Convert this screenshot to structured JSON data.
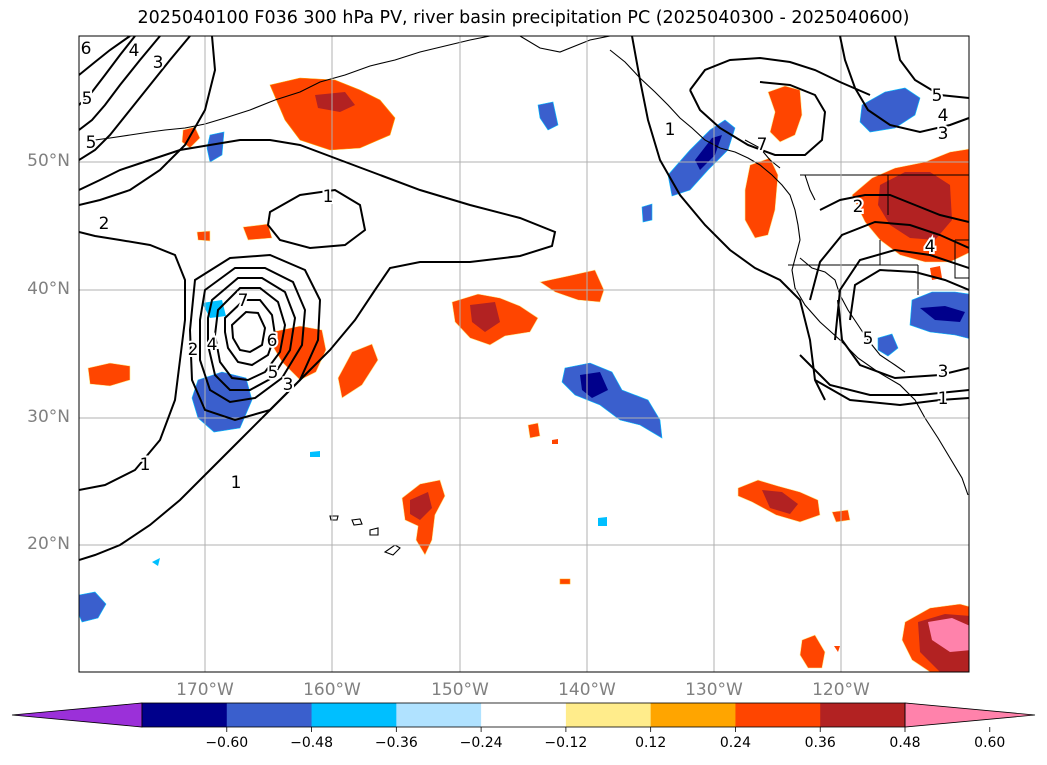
{
  "title": "2025040100 F036 300 hPa PV, river basin precipitation PC (2025040300 - 2025040600)",
  "lat_labels": [
    "50°N",
    "40°N",
    "30°N",
    "20°N"
  ],
  "lon_labels": [
    "170°W",
    "160°W",
    "150°W",
    "140°W",
    "130°W",
    "120°W"
  ],
  "colorbar": {
    "colors": [
      "#9b30d9",
      "#00008b",
      "#3a5fcd",
      "#00bfff",
      "#b0e2ff",
      "#ffffff",
      "#ffec8b",
      "#ffa500",
      "#ff4500",
      "#b22222",
      "#ff82ab"
    ],
    "ticks": [
      "−0.60",
      "−0.48",
      "−0.36",
      "−0.24",
      "−0.12",
      "0.12",
      "0.24",
      "0.36",
      "0.48",
      "0.60"
    ]
  },
  "contour_labels": [
    "1",
    "1",
    "1",
    "1",
    "1",
    "2",
    "2",
    "2",
    "3",
    "3",
    "3",
    "3",
    "4",
    "4",
    "4",
    "4",
    "5",
    "5",
    "5",
    "5",
    "5",
    "6",
    "6",
    "7",
    "7"
  ]
}
